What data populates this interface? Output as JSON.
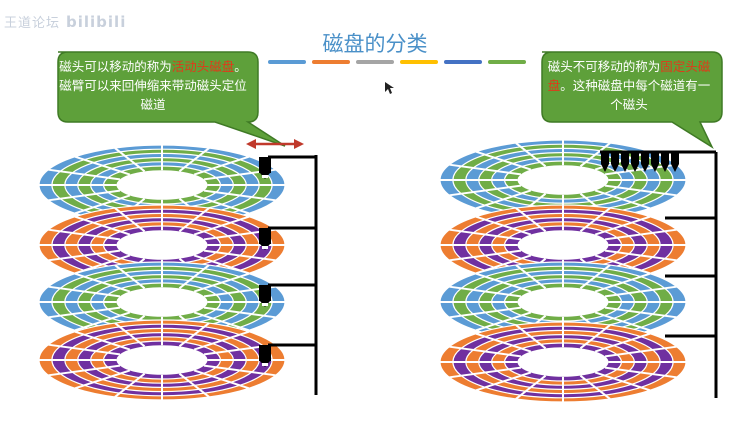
{
  "watermark": {
    "text": "王道论坛",
    "logo": "bilibili"
  },
  "title": "磁盘的分类",
  "title_bar_colors": [
    "#5a9bd5",
    "#ed7d31",
    "#a5a5a5",
    "#ffc000",
    "#4472c4",
    "#70ad47"
  ],
  "callouts": {
    "left": {
      "pre": "磁头可以移动的称为",
      "highlight": "活动头磁盘",
      "post": "。磁臂可以来回伸缩来带动磁头定位磁道"
    },
    "right": {
      "pre": "磁头不可移动的称为",
      "highlight": "固定头磁盘",
      "post": "。这种磁盘中每个磁道有一个磁头"
    }
  },
  "colors": {
    "callout_fill": "#5ea03a",
    "callout_stroke": "#3f7a25",
    "highlight": "#e03a1a",
    "platter_blue": "#5b9bd5",
    "platter_green": "#70ad47",
    "platter_orange": "#ed7d31",
    "platter_purple": "#7030a0",
    "arrow": "#c0392b",
    "arm": "#000000"
  },
  "left_stack": {
    "platters": [
      "blue-green",
      "orange-purple",
      "blue-green",
      "orange-purple"
    ]
  },
  "right_stack": {
    "platters": [
      "blue-green",
      "orange-purple",
      "blue-green",
      "orange-purple"
    ],
    "head_count": 8
  }
}
